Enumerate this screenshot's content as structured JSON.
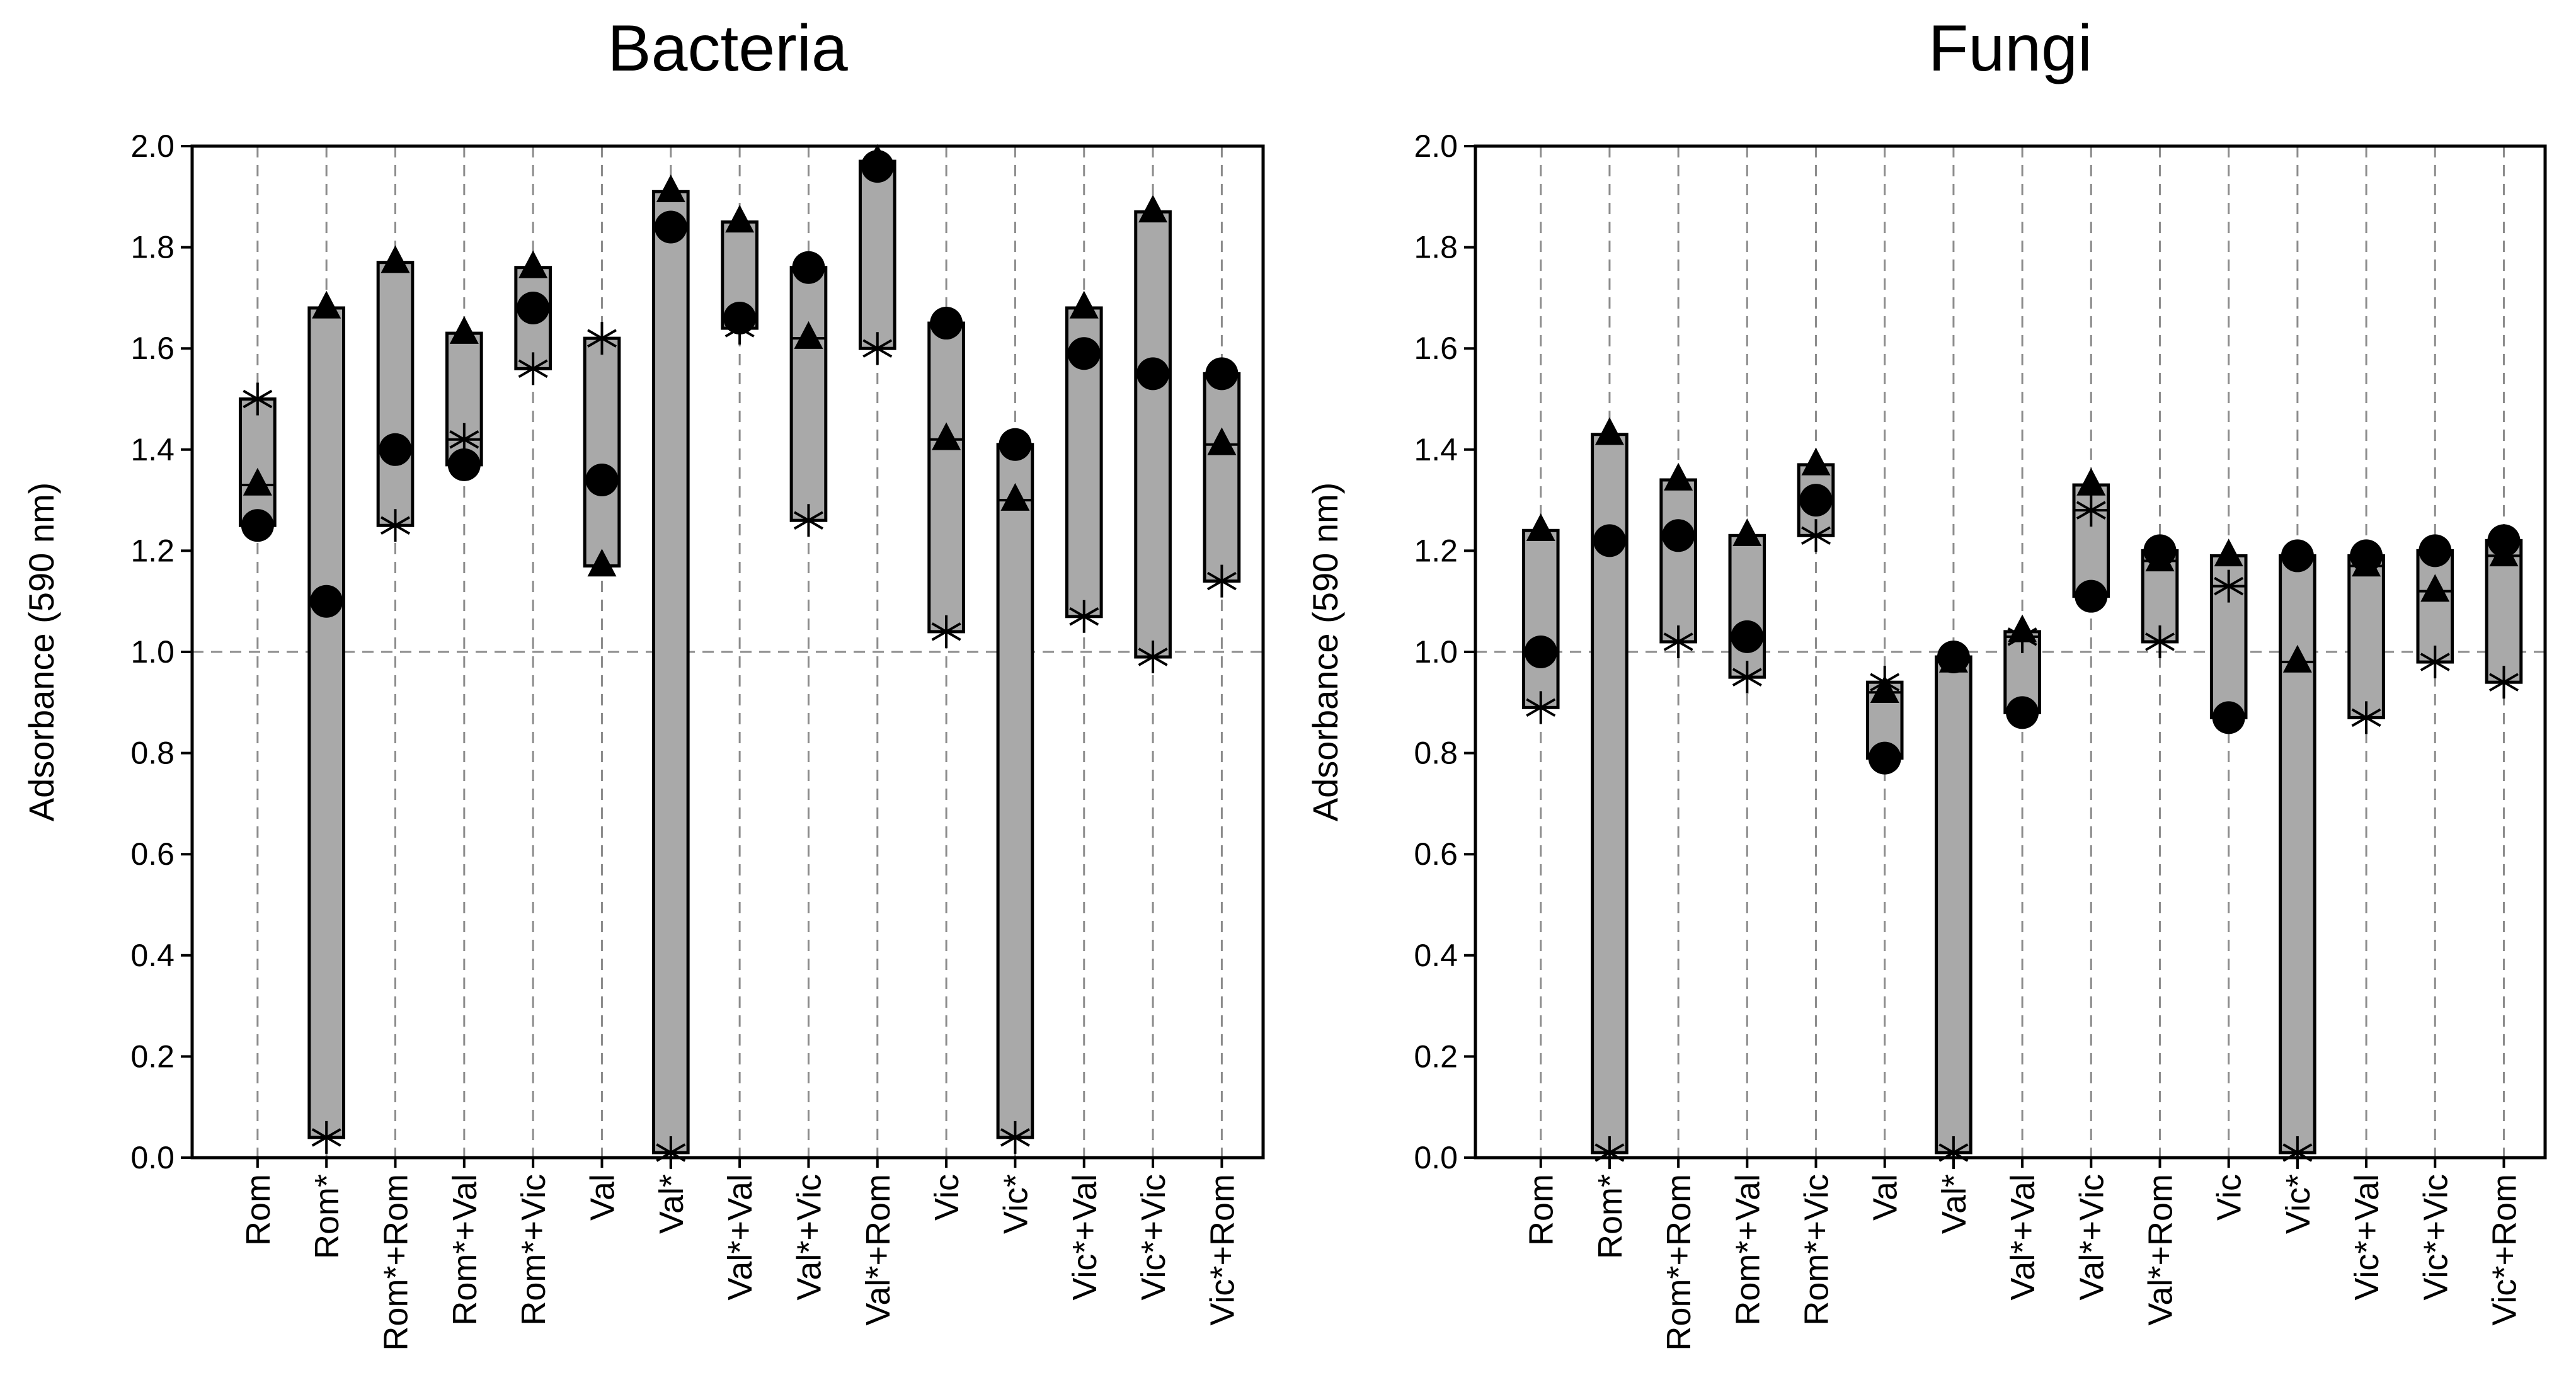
{
  "chart_data": [
    {
      "type": "range-bar",
      "title": "Bacteria",
      "xlabel": "",
      "ylabel": "Adsorbance (590 nm)",
      "ylim": [
        0,
        2.0
      ],
      "yticks": [
        "0.0",
        "0.2",
        "0.4",
        "0.6",
        "0.8",
        "1.0",
        "1.2",
        "1.4",
        "1.6",
        "1.8",
        "2.0"
      ],
      "reference_line": 1.0,
      "grid": "vertical dashed",
      "categories": [
        "Rom",
        "Rom*",
        "Rom*+Rom",
        "Rom*+Val",
        "Rom*+Vic",
        "Val",
        "Val*",
        "Val*+Val",
        "Val*+Vic",
        "Val*+Rom",
        "Vic",
        "Vic*",
        "Vic*+Val",
        "Vic*+Vic",
        "Vic*+Rom"
      ],
      "series": [
        {
          "name": "circle",
          "marker": "circle",
          "values": [
            1.25,
            1.1,
            1.4,
            1.37,
            1.68,
            1.34,
            1.84,
            1.66,
            1.76,
            1.96,
            1.65,
            1.41,
            1.59,
            1.55,
            1.55
          ]
        },
        {
          "name": "triangle",
          "marker": "triangle",
          "values": [
            1.33,
            1.68,
            1.77,
            1.63,
            1.76,
            1.17,
            1.91,
            1.85,
            1.62,
            1.97,
            1.42,
            1.3,
            1.68,
            1.87,
            1.41
          ]
        },
        {
          "name": "star",
          "marker": "asterisk",
          "values": [
            1.5,
            0.04,
            1.25,
            1.42,
            1.56,
            1.62,
            0.01,
            1.64,
            1.26,
            1.6,
            1.04,
            0.04,
            1.07,
            0.99,
            1.14
          ]
        }
      ]
    },
    {
      "type": "range-bar",
      "title": "Fungi",
      "xlabel": "",
      "ylabel": "Adsorbance (590 nm)",
      "ylim": [
        0,
        2.0
      ],
      "yticks": [
        "0.0",
        "0.2",
        "0.4",
        "0.6",
        "0.8",
        "1.0",
        "1.2",
        "1.4",
        "1.6",
        "1.8",
        "2.0"
      ],
      "reference_line": 1.0,
      "grid": "vertical dashed",
      "categories": [
        "Rom",
        "Rom*",
        "Rom*+Rom",
        "Rom*+Val",
        "Rom*+Vic",
        "Val",
        "Val*",
        "Val*+Val",
        "Val*+Vic",
        "Val*+Rom",
        "Vic",
        "Vic*",
        "Vic*+Val",
        "Vic*+Vic",
        "Vic*+Rom"
      ],
      "series": [
        {
          "name": "circle",
          "marker": "circle",
          "values": [
            1.0,
            1.22,
            1.23,
            1.03,
            1.3,
            0.79,
            0.99,
            0.88,
            1.11,
            1.2,
            0.87,
            1.19,
            1.19,
            1.2,
            1.22
          ]
        },
        {
          "name": "triangle",
          "marker": "triangle",
          "values": [
            1.24,
            1.43,
            1.34,
            1.23,
            1.37,
            0.92,
            0.98,
            1.04,
            1.33,
            1.18,
            1.19,
            0.98,
            1.17,
            1.12,
            1.19
          ]
        },
        {
          "name": "star",
          "marker": "asterisk",
          "values": [
            0.89,
            0.01,
            1.02,
            0.95,
            1.23,
            0.94,
            0.01,
            1.03,
            1.28,
            1.02,
            1.13,
            0.01,
            0.87,
            0.98,
            0.94
          ]
        }
      ]
    }
  ]
}
